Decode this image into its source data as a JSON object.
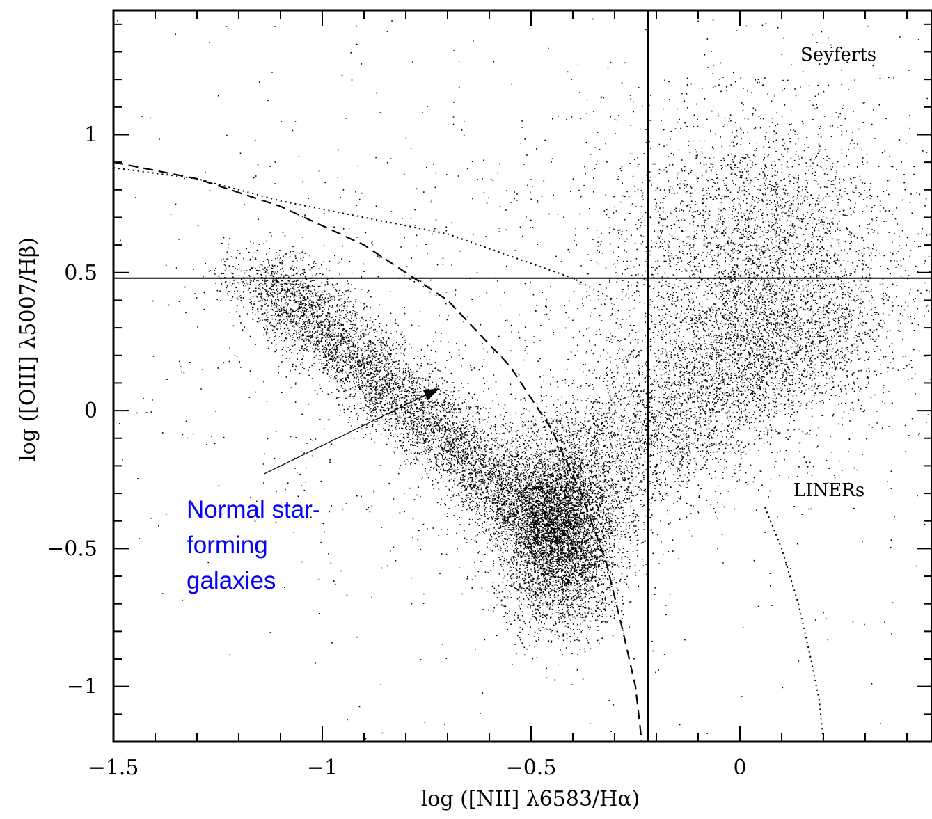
{
  "chart_data": {
    "type": "scatter",
    "title": "",
    "xlabel": "log ([NII] λ6583/Hα)",
    "ylabel": "log ([OIII] λ5007/Hβ)",
    "xlim": [
      -1.5,
      0.46
    ],
    "ylim": [
      -1.2,
      1.45
    ],
    "grid": false,
    "legend": "none",
    "x_ticks": [
      {
        "value": -1.5,
        "label": "−1.5"
      },
      {
        "value": -1.0,
        "label": "−1"
      },
      {
        "value": -0.5,
        "label": "−0.5"
      },
      {
        "value": 0.0,
        "label": "0"
      }
    ],
    "y_ticks": [
      {
        "value": -1.0,
        "label": "−1"
      },
      {
        "value": -0.5,
        "label": "−0.5"
      },
      {
        "value": 0.0,
        "label": "0"
      },
      {
        "value": 0.5,
        "label": "0.5"
      },
      {
        "value": 1.0,
        "label": "1"
      }
    ],
    "region_labels": {
      "seyferts": "Seyferts",
      "liners": "LINERs"
    },
    "annotation": {
      "lines": [
        "Normal star-",
        "forming",
        "galaxies"
      ],
      "color": "#0000ff",
      "arrow_target": [
        -0.72,
        0.08
      ],
      "arrow_tail": [
        -1.14,
        -0.23
      ]
    },
    "reference_lines": [
      {
        "kind": "vertical",
        "x": -0.22,
        "style": "solid"
      },
      {
        "kind": "horizontal",
        "y": 0.48,
        "style": "solid"
      }
    ],
    "curves": [
      {
        "name": "dashed",
        "style": "dashed",
        "points": [
          [
            -1.5,
            0.9
          ],
          [
            -1.3,
            0.84
          ],
          [
            -1.1,
            0.74
          ],
          [
            -0.9,
            0.6
          ],
          [
            -0.7,
            0.4
          ],
          [
            -0.55,
            0.16
          ],
          [
            -0.45,
            -0.07
          ],
          [
            -0.38,
            -0.3
          ],
          [
            -0.32,
            -0.55
          ],
          [
            -0.28,
            -0.8
          ],
          [
            -0.25,
            -1.0
          ],
          [
            -0.235,
            -1.2
          ]
        ]
      },
      {
        "name": "dotted-upper",
        "style": "dotted",
        "points": [
          [
            -1.5,
            0.88
          ],
          [
            -1.3,
            0.84
          ],
          [
            -1.1,
            0.76
          ],
          [
            -0.9,
            0.7
          ],
          [
            -0.7,
            0.64
          ],
          [
            -0.55,
            0.56
          ],
          [
            -0.4,
            0.48
          ],
          [
            -0.3,
            0.4
          ]
        ]
      },
      {
        "name": "dotted-lower",
        "style": "dotted",
        "points": [
          [
            0.06,
            -0.35
          ],
          [
            0.1,
            -0.5
          ],
          [
            0.14,
            -0.7
          ],
          [
            0.17,
            -0.9
          ],
          [
            0.19,
            -1.05
          ],
          [
            0.2,
            -1.2
          ]
        ]
      }
    ],
    "density_clusters": [
      {
        "name": "star-forming-core",
        "x": -0.43,
        "y": -0.45,
        "sx": 0.07,
        "sy": 0.16,
        "count": 5200
      },
      {
        "name": "star-forming-branch",
        "x0": -1.15,
        "y0": 0.5,
        "x1": -0.45,
        "y1": -0.45,
        "spread": 0.06,
        "count": 5500
      },
      {
        "name": "agn-branch",
        "x0": -0.45,
        "y0": -0.3,
        "x1": 0.2,
        "y1": 0.35,
        "spread": 0.12,
        "count": 4200
      },
      {
        "name": "seyfert-cloud",
        "x": 0.05,
        "y": 0.55,
        "sx": 0.17,
        "sy": 0.28,
        "count": 3600
      },
      {
        "name": "background",
        "x": -0.5,
        "y": 0.2,
        "sx": 0.5,
        "sy": 0.55,
        "count": 1400
      }
    ]
  }
}
